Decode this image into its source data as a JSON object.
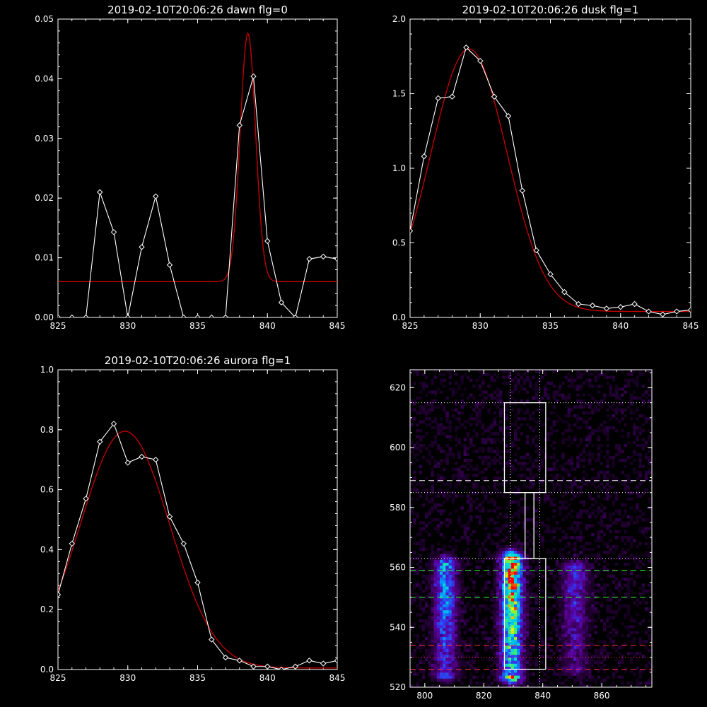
{
  "chart_data": [
    {
      "type": "line",
      "title": "2019-02-10T20:06:26 dawn flg=0",
      "xlim": [
        825,
        845
      ],
      "ylim": [
        0,
        0.05
      ],
      "xticks": [
        825,
        830,
        835,
        840,
        845
      ],
      "yticks": [
        0.0,
        0.01,
        0.02,
        0.03,
        0.04,
        0.05
      ],
      "ytick_labels": [
        "0.00",
        "0.01",
        "0.02",
        "0.03",
        "0.04",
        "0.05"
      ],
      "series": [
        {
          "color": "#ffffff",
          "markers": "diamond",
          "x": [
            825,
            826,
            827,
            828,
            829,
            830,
            831,
            832,
            833,
            834,
            835,
            836,
            837,
            838,
            839,
            840,
            841,
            842,
            843,
            844,
            845
          ],
          "y": [
            0,
            0,
            0,
            0.021,
            0.0143,
            0,
            0.0118,
            0.0203,
            0.0088,
            0,
            0,
            0,
            0,
            0.0322,
            0.0404,
            0.0128,
            0.0025,
            0,
            0.0098,
            0.0102,
            0.0098
          ]
        },
        {
          "color": "#cc0000",
          "markers": "none",
          "fit": "gaussian",
          "amplitude": 0.0416,
          "center": 838.6,
          "sigma": 0.55,
          "baseline": 0.006
        }
      ]
    },
    {
      "type": "line",
      "title": "2019-02-10T20:06:26 dusk flg=1",
      "xlim": [
        825,
        845
      ],
      "ylim": [
        0,
        2.0
      ],
      "xticks": [
        825,
        830,
        835,
        840,
        845
      ],
      "yticks": [
        0.0,
        0.5,
        1.0,
        1.5,
        2.0
      ],
      "ytick_labels": [
        "0.0",
        "0.5",
        "1.0",
        "1.5",
        "2.0"
      ],
      "series": [
        {
          "color": "#ffffff",
          "markers": "diamond",
          "x": [
            825,
            826,
            827,
            828,
            829,
            830,
            831,
            832,
            833,
            834,
            835,
            836,
            837,
            838,
            839,
            840,
            841,
            842,
            843,
            844,
            845
          ],
          "y": [
            0.58,
            1.08,
            1.47,
            1.48,
            1.81,
            1.72,
            1.48,
            1.35,
            0.85,
            0.45,
            0.29,
            0.17,
            0.09,
            0.08,
            0.06,
            0.07,
            0.09,
            0.04,
            0.02,
            0.04,
            0.05
          ]
        },
        {
          "color": "#cc0000",
          "markers": "none",
          "fit": "gaussian",
          "amplitude": 1.76,
          "center": 829.2,
          "sigma": 2.7,
          "baseline": 0.04
        }
      ]
    },
    {
      "type": "line",
      "title": "2019-02-10T20:06:26 aurora flg=1",
      "xlim": [
        825,
        845
      ],
      "ylim": [
        0,
        1.0
      ],
      "xticks": [
        825,
        830,
        835,
        840,
        845
      ],
      "yticks": [
        0.0,
        0.2,
        0.4,
        0.6,
        0.8,
        1.0
      ],
      "ytick_labels": [
        "0.0",
        "0.2",
        "0.4",
        "0.6",
        "0.8",
        "1.0"
      ],
      "series": [
        {
          "color": "#ffffff",
          "markers": "diamond",
          "x": [
            825,
            826,
            827,
            828,
            829,
            830,
            831,
            832,
            833,
            834,
            835,
            836,
            837,
            838,
            839,
            840,
            841,
            842,
            843,
            844,
            845
          ],
          "y": [
            0.25,
            0.42,
            0.57,
            0.76,
            0.82,
            0.69,
            0.71,
            0.7,
            0.51,
            0.42,
            0.29,
            0.1,
            0.04,
            0.03,
            0.01,
            0.01,
            0.0,
            0.01,
            0.03,
            0.02,
            0.03
          ]
        },
        {
          "color": "#cc0000",
          "markers": "none",
          "fit": "gaussian",
          "amplitude": 0.79,
          "center": 829.8,
          "sigma": 3.2,
          "baseline": 0.005
        }
      ]
    },
    {
      "type": "heatmap",
      "colormap": "rainbow",
      "xlim": [
        795,
        877
      ],
      "ylim": [
        520,
        626
      ],
      "xticks": [
        800,
        820,
        840,
        860
      ],
      "yticks": [
        520,
        540,
        560,
        580,
        600,
        620
      ],
      "blobs": [
        {
          "x_center": 807,
          "x_width": 2.5,
          "y_top": 561,
          "y_bottom": 525,
          "peak": 0.55
        },
        {
          "x_center": 829.5,
          "x_width": 2.4,
          "y_top": 563,
          "y_bottom": 524,
          "peak": 1.0
        },
        {
          "x_center": 851,
          "x_width": 3.0,
          "y_top": 560,
          "y_bottom": 527,
          "peak": 0.3
        }
      ],
      "vertical_dotted_lines": [
        829,
        839
      ],
      "horizontal_lines": [
        {
          "y": 615,
          "color": "#ffffff",
          "style": "dotted"
        },
        {
          "y": 589,
          "color": "#ffffff",
          "style": "dashed"
        },
        {
          "y": 585,
          "color": "#ffffff",
          "style": "dotted"
        },
        {
          "y": 563,
          "color": "#ffffff",
          "style": "dotted"
        },
        {
          "y": 559,
          "color": "#33ff33",
          "style": "dashed"
        },
        {
          "y": 550,
          "color": "#33ff33",
          "style": "dashed"
        },
        {
          "y": 534,
          "color": "#ff3333",
          "style": "dashed"
        },
        {
          "y": 530,
          "color": "#ff3333",
          "style": "dotted"
        },
        {
          "y": 526,
          "color": "#ff3333",
          "style": "dashed"
        }
      ],
      "boxes": [
        {
          "x0": 827,
          "x1": 841,
          "y0": 585,
          "y1": 615
        },
        {
          "x0": 834,
          "x1": 837,
          "y0": 563,
          "y1": 585
        },
        {
          "x0": 827,
          "x1": 841,
          "y0": 526,
          "y1": 563
        }
      ]
    }
  ]
}
